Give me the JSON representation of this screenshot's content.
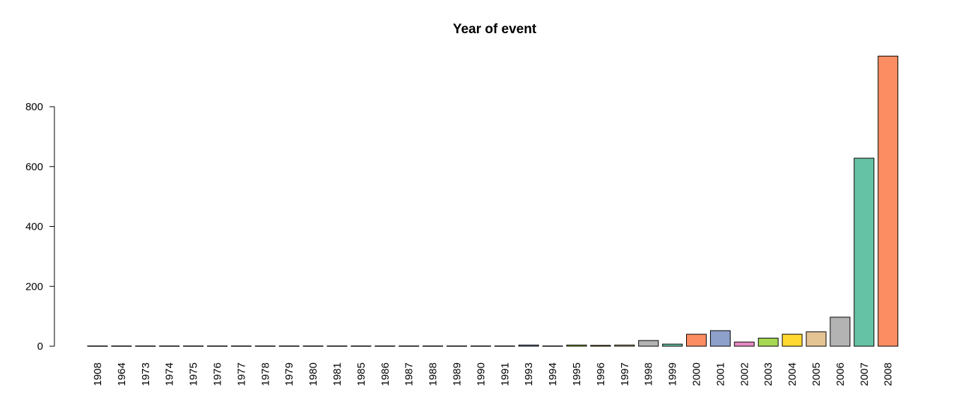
{
  "chart_data": {
    "type": "bar",
    "title": "Year of event",
    "xlabel": "",
    "ylabel": "",
    "ylim": [
      0,
      970
    ],
    "yticks": [
      0,
      200,
      400,
      600,
      800
    ],
    "grid": false,
    "legend": "none",
    "categories": [
      "1908",
      "1964",
      "1973",
      "1974",
      "1975",
      "1976",
      "1977",
      "1978",
      "1979",
      "1980",
      "1981",
      "1985",
      "1986",
      "1987",
      "1988",
      "1989",
      "1990",
      "1991",
      "1993",
      "1994",
      "1995",
      "1996",
      "1997",
      "1998",
      "1999",
      "2000",
      "2001",
      "2002",
      "2003",
      "2004",
      "2005",
      "2006",
      "2007",
      "2008"
    ],
    "values": [
      1,
      1,
      1,
      1,
      1,
      1,
      1,
      1,
      1,
      1,
      1,
      1,
      1,
      1,
      1,
      1,
      1,
      1,
      4,
      1,
      4,
      3,
      4,
      19,
      7,
      40,
      52,
      14,
      27,
      40,
      48,
      97,
      628,
      969
    ],
    "colors": [
      "#66C2A5",
      "#FC8D62",
      "#8DA0CB",
      "#E78AC3",
      "#A6D854",
      "#FFD92F",
      "#E5C494",
      "#B3B3B3"
    ]
  }
}
